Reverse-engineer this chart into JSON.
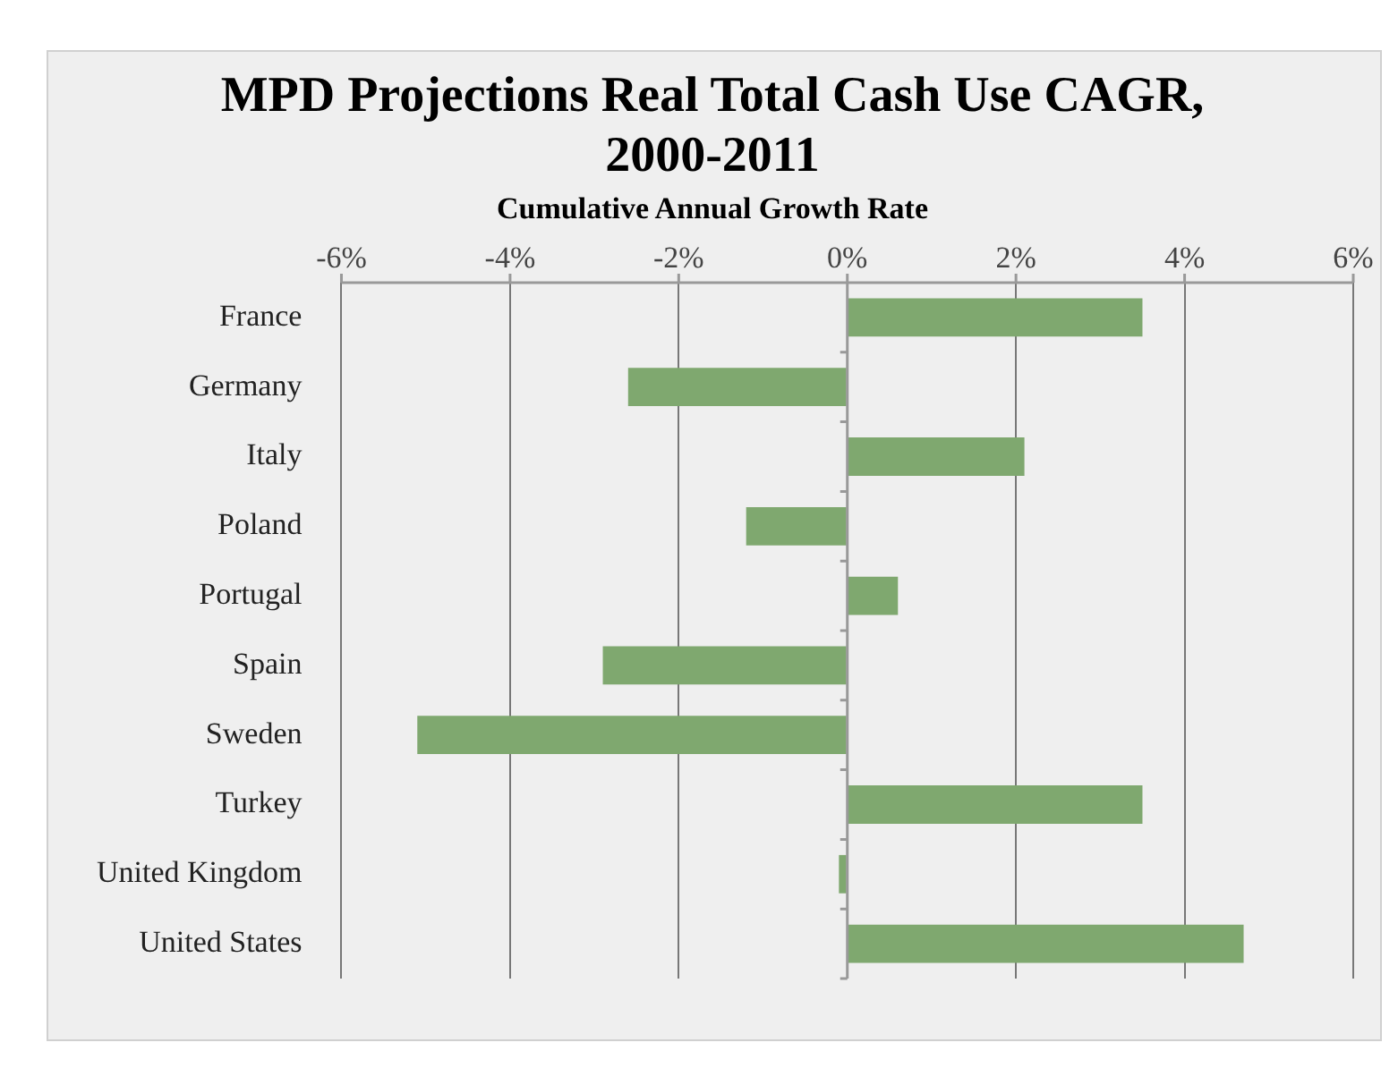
{
  "chart_data": {
    "type": "bar",
    "orientation": "horizontal",
    "title": "MPD Projections Real Total Cash Use CAGR, 2000-2011",
    "xlabel": "Cumulative Annual Growth Rate",
    "categories": [
      "France",
      "Germany",
      "Italy",
      "Poland",
      "Portugal",
      "Spain",
      "Sweden",
      "Turkey",
      "United Kingdom",
      "United States"
    ],
    "values": [
      3.5,
      -2.6,
      2.1,
      -1.2,
      0.6,
      -2.9,
      -5.1,
      3.5,
      -0.1,
      4.7
    ],
    "color": "#7fa86f",
    "xlim": [
      -6,
      6
    ],
    "xticks": [
      {
        "value": -6,
        "label": "-6%"
      },
      {
        "value": -4,
        "label": "-4%"
      },
      {
        "value": -2,
        "label": "-2%"
      },
      {
        "value": 0,
        "label": "0%"
      },
      {
        "value": 2,
        "label": "2%"
      },
      {
        "value": 4,
        "label": "4%"
      },
      {
        "value": 6,
        "label": "6%"
      }
    ],
    "grid": "x",
    "legend": false
  }
}
